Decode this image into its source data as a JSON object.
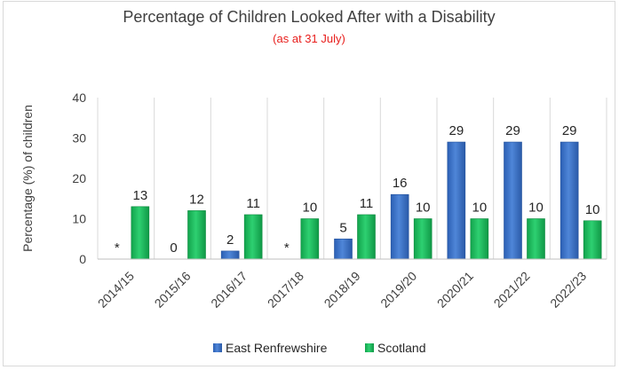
{
  "chart_data": {
    "type": "bar",
    "title": "Percentage of Children Looked After with a Disability",
    "subtitle": "(as at 31 July)",
    "xlabel": "",
    "ylabel": "Percentage (%) of children",
    "ylim": [
      0,
      40
    ],
    "yticks": [
      0,
      10,
      20,
      30,
      40
    ],
    "categories": [
      "2014/15",
      "2015/16",
      "2016/17",
      "2017/18",
      "2018/19",
      "2019/20",
      "2020/21",
      "2021/22",
      "2022/23"
    ],
    "series": [
      {
        "name": "East Renfrewshire",
        "color": "#3a6fc4",
        "values": [
          null,
          0,
          2,
          null,
          5,
          16,
          29,
          29,
          29
        ],
        "labels": [
          "*",
          "0",
          "2",
          "*",
          "5",
          "16",
          "29",
          "29",
          "29"
        ]
      },
      {
        "name": "Scotland",
        "color": "#21c063",
        "values": [
          13,
          12,
          11,
          10,
          11,
          10,
          10,
          10,
          10
        ],
        "plotted": [
          13,
          12,
          11,
          10,
          11,
          10,
          10,
          10,
          9.5
        ],
        "labels": [
          "13",
          "12",
          "11",
          "10",
          "11",
          "10",
          "10",
          "10",
          "10"
        ]
      }
    ],
    "grid": "vertical",
    "legend": "bottom"
  }
}
